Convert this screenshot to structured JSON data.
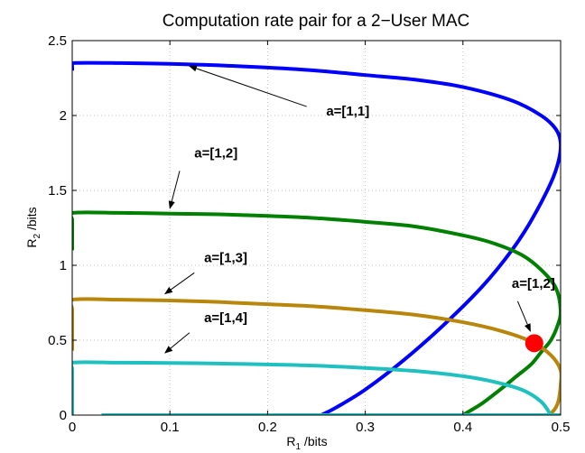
{
  "chart_data": {
    "type": "line",
    "title": "Computation rate pair for a 2−User MAC",
    "xlabel": {
      "main": "R",
      "sub": "1",
      "unit": " /bits"
    },
    "ylabel": {
      "main": "R",
      "sub": "2",
      "unit": " /bits"
    },
    "xlim": [
      0,
      0.5
    ],
    "ylim": [
      0,
      2.5
    ],
    "xticks": [
      0,
      0.1,
      0.2,
      0.3,
      0.4,
      0.5
    ],
    "xtick_labels": [
      "0",
      "0.1",
      "0.2",
      "0.3",
      "0.4",
      "0.5"
    ],
    "yticks": [
      0,
      0.5,
      1,
      1.5,
      2,
      2.5
    ],
    "ytick_labels": [
      "0",
      "0.5",
      "1",
      "1.5",
      "2",
      "2.5"
    ],
    "grid": true,
    "series": [
      {
        "color": "#0000ff",
        "x": [
          0,
          0,
          0,
          0.05,
          0.1,
          0.15,
          0.2,
          0.25,
          0.3,
          0.35,
          0.4,
          0.45,
          0.48,
          0.495,
          0.5,
          0.498,
          0.49,
          0.47,
          0.45,
          0.42,
          0.38,
          0.34,
          0.3,
          0.27,
          0.255
        ],
        "y": [
          2.3,
          2.33,
          2.35,
          2.35,
          2.345,
          2.335,
          2.32,
          2.3,
          2.27,
          2.24,
          2.19,
          2.1,
          2.0,
          1.91,
          1.82,
          1.7,
          1.55,
          1.3,
          1.1,
          0.86,
          0.6,
          0.37,
          0.17,
          0.05,
          0.0
        ]
      },
      {
        "color": "#008000",
        "x": [
          0,
          0,
          0,
          0.05,
          0.1,
          0.15,
          0.2,
          0.25,
          0.3,
          0.35,
          0.4,
          0.43,
          0.46,
          0.48,
          0.495,
          0.5,
          0.497,
          0.49,
          0.48,
          0.47,
          0.455,
          0.44,
          0.42,
          0.405,
          0.4
        ],
        "y": [
          1.1,
          1.3,
          1.35,
          1.35,
          1.345,
          1.34,
          1.33,
          1.315,
          1.29,
          1.26,
          1.2,
          1.15,
          1.07,
          0.97,
          0.85,
          0.7,
          0.6,
          0.5,
          0.42,
          0.34,
          0.26,
          0.18,
          0.08,
          0.02,
          0.0
        ]
      },
      {
        "color": "#b8860b",
        "x": [
          0,
          0,
          0,
          0.05,
          0.1,
          0.15,
          0.2,
          0.25,
          0.3,
          0.35,
          0.4,
          0.44,
          0.47,
          0.49,
          0.5,
          0.5,
          0.498,
          0.495,
          0.49,
          0.488
        ],
        "y": [
          0.43,
          0.7,
          0.77,
          0.77,
          0.765,
          0.755,
          0.74,
          0.725,
          0.7,
          0.67,
          0.62,
          0.56,
          0.49,
          0.4,
          0.3,
          0.2,
          0.1,
          0.05,
          0.01,
          0.0
        ]
      },
      {
        "color": "#20c0c0",
        "x": [
          0,
          0,
          0,
          0.05,
          0.1,
          0.15,
          0.2,
          0.25,
          0.3,
          0.35,
          0.4,
          0.43,
          0.46,
          0.48,
          0.49
        ],
        "y": [
          0.0,
          0.3,
          0.35,
          0.35,
          0.348,
          0.344,
          0.338,
          0.33,
          0.315,
          0.295,
          0.26,
          0.225,
          0.17,
          0.09,
          0.0
        ]
      },
      {
        "color": "#20c0c0",
        "x": [
          0.03,
          0.5
        ],
        "y": [
          0.0,
          0.0
        ]
      }
    ],
    "points": [
      {
        "x": 0.473,
        "y": 0.48,
        "color": "#ff0000"
      }
    ],
    "annotations": [
      {
        "text": "a=[1,1]",
        "text_x": 0.26,
        "text_y": 2.0,
        "arrow_from": [
          0.24,
          2.06
        ],
        "arrow_to": [
          0.12,
          2.33
        ]
      },
      {
        "text": "a=[1,2]",
        "text_x": 0.125,
        "text_y": 1.72,
        "arrow_from": [
          0.11,
          1.63
        ],
        "arrow_to": [
          0.1,
          1.38
        ]
      },
      {
        "text": "a=[1,3]",
        "text_x": 0.135,
        "text_y": 1.02,
        "arrow_from": [
          0.125,
          0.95
        ],
        "arrow_to": [
          0.095,
          0.81
        ]
      },
      {
        "text": "a=[1,4]",
        "text_x": 0.135,
        "text_y": 0.62,
        "arrow_from": [
          0.12,
          0.55
        ],
        "arrow_to": [
          0.095,
          0.415
        ]
      },
      {
        "text": "a=[1,2]",
        "text_x": 0.45,
        "text_y": 0.85,
        "arrow_from": [
          0.456,
          0.76
        ],
        "arrow_to": [
          0.469,
          0.56
        ]
      }
    ]
  }
}
